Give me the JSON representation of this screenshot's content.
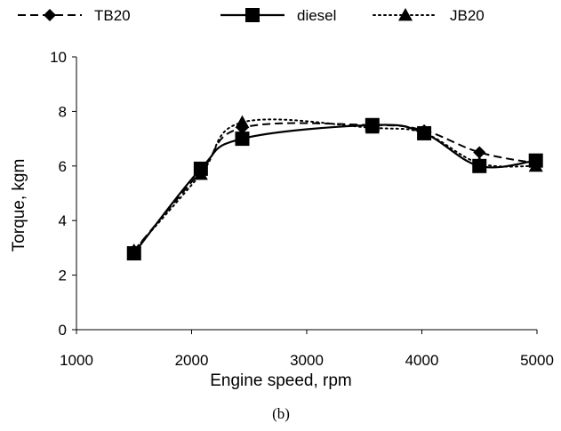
{
  "chart_data": {
    "type": "line",
    "xlabel": "Engine speed, rpm",
    "ylabel": "Torque, kgm",
    "xlim": [
      1000,
      5000
    ],
    "ylim": [
      0,
      10
    ],
    "xticks": [
      "1000",
      "2000",
      "3000",
      "4000",
      "5000"
    ],
    "yticks": [
      "0",
      "2",
      "4",
      "6",
      "8",
      "10"
    ],
    "grid": false,
    "legend_position": "top",
    "caption": "(b)",
    "series": [
      {
        "name": "TB20",
        "marker": "diamond",
        "line_style": "dashed",
        "color": "#000000",
        "x": [
          1500,
          2080,
          2440,
          3570,
          4020,
          4500,
          4990
        ],
        "y": [
          2.9,
          5.8,
          7.4,
          7.5,
          7.3,
          6.5,
          6.1
        ]
      },
      {
        "name": "diesel",
        "marker": "square",
        "line_style": "solid",
        "color": "#000000",
        "x": [
          1500,
          2080,
          2440,
          3570,
          4020,
          4500,
          4990
        ],
        "y": [
          2.8,
          5.9,
          7.0,
          7.5,
          7.2,
          6.0,
          6.2
        ]
      },
      {
        "name": "JB20",
        "marker": "triangle",
        "line_style": "dotted",
        "color": "#000000",
        "x": [
          1500,
          2080,
          2440,
          3570,
          4020,
          4500,
          4990
        ],
        "y": [
          2.9,
          5.7,
          7.6,
          7.4,
          7.2,
          6.1,
          6.0
        ]
      }
    ]
  }
}
